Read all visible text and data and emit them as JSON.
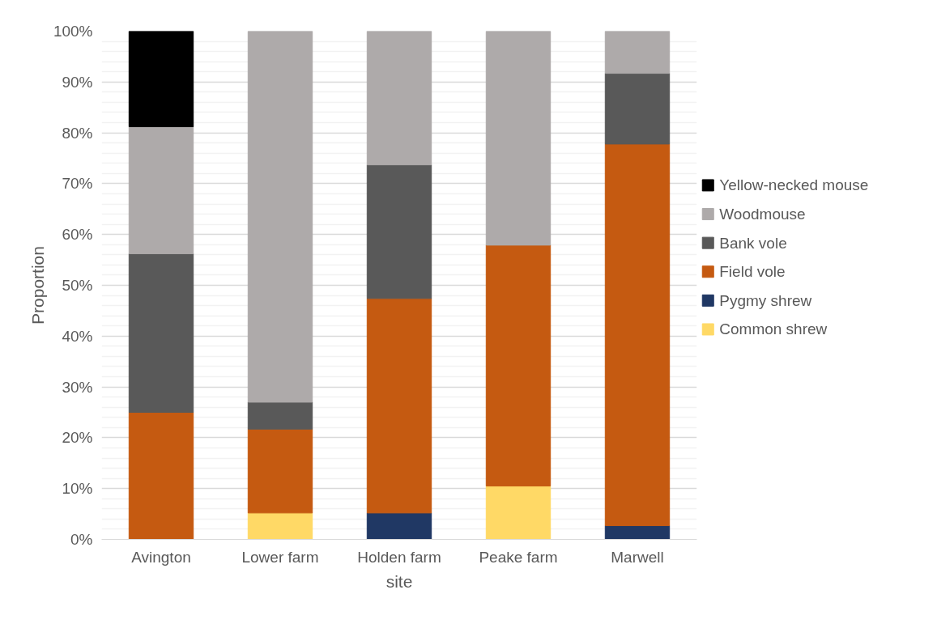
{
  "chart_data": {
    "type": "bar",
    "stacked": true,
    "xlabel": "site",
    "ylabel": "Proportion",
    "categories": [
      "Avington",
      "Lower farm",
      "Holden farm",
      "Peake farm",
      "Marwell"
    ],
    "series": [
      {
        "name": "Common shrew",
        "color": "#ffd966",
        "values": [
          null,
          5.2,
          null,
          10.5,
          null
        ]
      },
      {
        "name": "Pygmy shrew",
        "color": "#203864",
        "values": [
          null,
          null,
          5.2,
          null,
          2.7
        ]
      },
      {
        "name": "Field vole",
        "color": "#c55a11",
        "values": [
          25,
          16.5,
          42.2,
          47.4,
          75.1
        ]
      },
      {
        "name": "Bank vole",
        "color": "#595959",
        "values": [
          31.2,
          5.3,
          26.3,
          null,
          13.9
        ]
      },
      {
        "name": "Woodmouse",
        "color": "#aeaaaa",
        "values": [
          25,
          73,
          26.3,
          42.1,
          8.3
        ]
      },
      {
        "name": "Yellow-necked mouse",
        "color": "#000000",
        "values": [
          18.8,
          null,
          null,
          null,
          null
        ]
      }
    ],
    "ylim": [
      0,
      100
    ],
    "yticks": [
      {
        "value": 0,
        "label": "0%"
      },
      {
        "value": 10,
        "label": "10%"
      },
      {
        "value": 20,
        "label": "20%"
      },
      {
        "value": 30,
        "label": "30%"
      },
      {
        "value": 40,
        "label": "40%"
      },
      {
        "value": 50,
        "label": "50%"
      },
      {
        "value": 60,
        "label": "60%"
      },
      {
        "value": 70,
        "label": "70%"
      },
      {
        "value": 80,
        "label": "80%"
      },
      {
        "value": 90,
        "label": "90%"
      },
      {
        "value": 100,
        "label": "100%"
      }
    ],
    "grid": "y",
    "legend": "right"
  }
}
